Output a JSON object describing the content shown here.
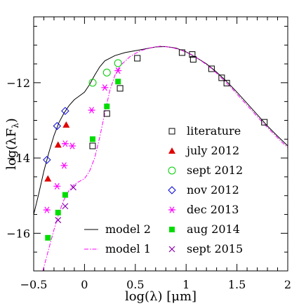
{
  "chart_data": {
    "type": "scatter",
    "xlabel": "log(λ) [μm]",
    "ylabel": "log(λF",
    "ylabel_sub": "λ",
    "ylabel_close": ")",
    "xlim": [
      -0.5,
      2.0
    ],
    "ylim": [
      -17.0,
      -10.25
    ],
    "xticks": [
      -0.5,
      0,
      0.5,
      1,
      1.5,
      2
    ],
    "xtick_labels": [
      "−0.5",
      "0",
      "0.5",
      "1",
      "1.5",
      "2"
    ],
    "yticks": [
      -12,
      -14,
      -16
    ],
    "ytick_labels": [
      "−12",
      "−14",
      "−16"
    ],
    "grid": false,
    "legend_position": "right",
    "series": [
      {
        "name": "literature",
        "marker": "open-square",
        "color": "#000000",
        "points": [
          [
            0.08,
            -13.68
          ],
          [
            0.22,
            -12.82
          ],
          [
            0.35,
            -12.15
          ],
          [
            0.52,
            -11.35
          ],
          [
            0.96,
            -11.2
          ],
          [
            1.06,
            -11.25
          ],
          [
            1.07,
            -11.38
          ],
          [
            1.25,
            -11.63
          ],
          [
            1.35,
            -11.87
          ],
          [
            1.4,
            -12.01
          ],
          [
            1.77,
            -13.05
          ]
        ]
      },
      {
        "name": "july 2012",
        "marker": "filled-triangle",
        "color": "#e00000",
        "points": [
          [
            -0.36,
            -14.55
          ],
          [
            -0.26,
            -13.65
          ],
          [
            -0.18,
            -13.12
          ]
        ]
      },
      {
        "name": "sept 2012",
        "marker": "open-circle",
        "color": "#00cc00",
        "points": [
          [
            0.08,
            -12.0
          ],
          [
            0.22,
            -11.73
          ],
          [
            0.33,
            -11.48
          ]
        ]
      },
      {
        "name": "nov 2012",
        "marker": "open-diamond",
        "color": "#0000dd",
        "points": [
          [
            -0.37,
            -14.05
          ],
          [
            -0.27,
            -13.15
          ],
          [
            -0.19,
            -12.75
          ]
        ]
      },
      {
        "name": "dec 2013",
        "marker": "asterisk",
        "color": "#ff00ff",
        "points": [
          [
            -0.37,
            -15.38
          ],
          [
            -0.27,
            -14.75
          ],
          [
            -0.2,
            -14.2
          ],
          [
            -0.12,
            -13.68
          ],
          [
            -0.19,
            -13.62
          ],
          [
            0.07,
            -12.73
          ],
          [
            0.2,
            -12.13
          ],
          [
            0.33,
            -11.68
          ]
        ]
      },
      {
        "name": "aug 2014",
        "marker": "filled-square",
        "color": "#00dd00",
        "points": [
          [
            -0.36,
            -16.12
          ],
          [
            -0.26,
            -15.45
          ],
          [
            -0.19,
            -14.98
          ],
          [
            0.08,
            -13.5
          ],
          [
            0.22,
            -12.63
          ],
          [
            0.33,
            -11.97
          ]
        ]
      },
      {
        "name": "sept 2015",
        "marker": "cross",
        "color": "#8800aa",
        "points": [
          [
            -0.26,
            -15.65
          ],
          [
            -0.19,
            -15.28
          ],
          [
            -0.11,
            -14.78
          ]
        ]
      }
    ],
    "lines": [
      {
        "name": "model 2",
        "style": "solid",
        "color": "#000000",
        "points": [
          [
            -0.5,
            -15.5
          ],
          [
            -0.45,
            -14.95
          ],
          [
            -0.4,
            -14.35
          ],
          [
            -0.35,
            -13.85
          ],
          [
            -0.3,
            -13.4
          ],
          [
            -0.25,
            -13.05
          ],
          [
            -0.2,
            -12.8
          ],
          [
            -0.15,
            -12.6
          ],
          [
            -0.1,
            -12.45
          ],
          [
            -0.05,
            -12.35
          ],
          [
            0.0,
            -12.25
          ],
          [
            0.05,
            -12.05
          ],
          [
            0.1,
            -11.8
          ],
          [
            0.15,
            -11.58
          ],
          [
            0.2,
            -11.42
          ],
          [
            0.3,
            -11.28
          ],
          [
            0.4,
            -11.2
          ],
          [
            0.5,
            -11.15
          ],
          [
            0.6,
            -11.1
          ],
          [
            0.7,
            -11.05
          ],
          [
            0.8,
            -11.04
          ],
          [
            0.9,
            -11.08
          ],
          [
            1.0,
            -11.18
          ],
          [
            1.1,
            -11.33
          ],
          [
            1.2,
            -11.5
          ],
          [
            1.3,
            -11.72
          ],
          [
            1.4,
            -11.97
          ],
          [
            1.5,
            -12.25
          ],
          [
            1.6,
            -12.55
          ],
          [
            1.7,
            -12.85
          ],
          [
            1.8,
            -13.15
          ],
          [
            1.9,
            -13.42
          ],
          [
            2.0,
            -13.68
          ]
        ]
      },
      {
        "name": "model 1",
        "style": "dashdot",
        "color": "#ff00ff",
        "points": [
          [
            -0.41,
            -17.0
          ],
          [
            -0.35,
            -16.4
          ],
          [
            -0.3,
            -15.9
          ],
          [
            -0.25,
            -15.45
          ],
          [
            -0.2,
            -15.1
          ],
          [
            -0.15,
            -14.85
          ],
          [
            -0.1,
            -14.7
          ],
          [
            -0.05,
            -14.62
          ],
          [
            0.0,
            -14.55
          ],
          [
            0.05,
            -14.35
          ],
          [
            0.1,
            -14.0
          ],
          [
            0.15,
            -13.45
          ],
          [
            0.2,
            -12.8
          ],
          [
            0.25,
            -12.2
          ],
          [
            0.3,
            -11.8
          ],
          [
            0.35,
            -11.55
          ],
          [
            0.45,
            -11.3
          ],
          [
            0.55,
            -11.15
          ],
          [
            0.65,
            -11.07
          ],
          [
            0.75,
            -11.03
          ],
          [
            0.85,
            -11.06
          ],
          [
            0.95,
            -11.13
          ],
          [
            1.05,
            -11.25
          ],
          [
            1.15,
            -11.42
          ],
          [
            1.25,
            -11.62
          ],
          [
            1.35,
            -11.88
          ],
          [
            1.45,
            -12.15
          ],
          [
            1.55,
            -12.45
          ],
          [
            1.65,
            -12.75
          ],
          [
            1.75,
            -13.05
          ],
          [
            1.85,
            -13.33
          ],
          [
            1.95,
            -13.6
          ],
          [
            2.0,
            -13.72
          ]
        ]
      }
    ],
    "legend_markers": [
      "literature",
      "july 2012",
      "sept 2012",
      "nov 2012",
      "dec 2013",
      "aug 2014",
      "sept 2015"
    ],
    "legend_lines": [
      "model 2",
      "model 1"
    ]
  }
}
